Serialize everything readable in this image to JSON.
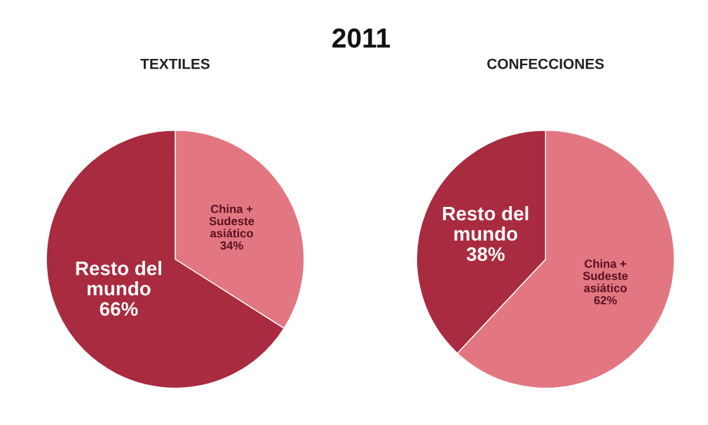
{
  "chart_data": [
    {
      "type": "pie",
      "title": "TEXTILES",
      "annotations": [
        "2011"
      ],
      "categories": [
        "China +\nSudeste\nasiático",
        "Resto del\nmundo"
      ],
      "values": [
        34,
        66
      ],
      "value_labels": [
        "34%",
        "66%"
      ],
      "colors": [
        "#e27782",
        "#a92b40"
      ]
    },
    {
      "type": "pie",
      "title": "CONFECCIONES",
      "categories": [
        "China +\nSudeste\nasiático",
        "Resto del\nmundo"
      ],
      "values": [
        62,
        38
      ],
      "value_labels": [
        "62%",
        "38%"
      ],
      "colors": [
        "#e27782",
        "#a92b40"
      ]
    }
  ]
}
